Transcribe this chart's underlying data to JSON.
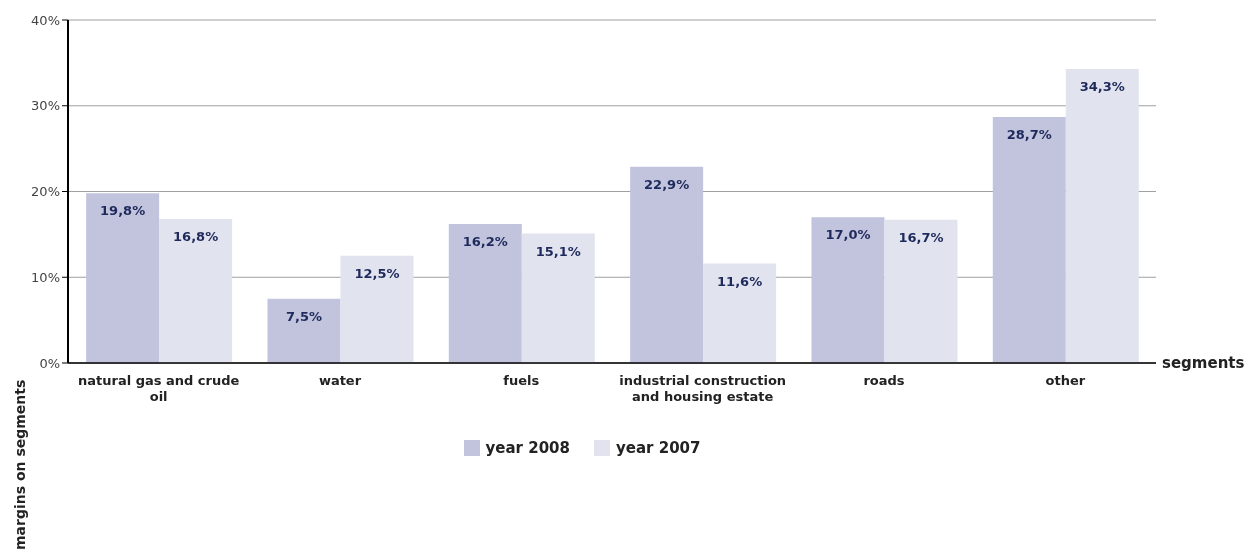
{
  "chart_data": {
    "type": "bar",
    "categories": [
      "natural gas and crude oil",
      "water",
      "fuels",
      "industrial construction and housing estate",
      "roads",
      "other"
    ],
    "series": [
      {
        "name": "year 2008",
        "color": "#c1c4dc",
        "values": [
          19.8,
          7.5,
          16.2,
          22.9,
          17.0,
          28.7
        ],
        "value_labels": [
          "19,8%",
          "7,5%",
          "16,2%",
          "22,9%",
          "17,0%",
          "28,7%"
        ]
      },
      {
        "name": "year 2007",
        "color": "#e1e3ee",
        "values": [
          16.8,
          12.5,
          15.1,
          11.6,
          16.7,
          34.3
        ],
        "value_labels": [
          "16,8%",
          "12,5%",
          "15,1%",
          "11,6%",
          "16,7%",
          "34,3%"
        ]
      }
    ],
    "xlabel": "segments",
    "ylabel": "margins on segments",
    "ylim": [
      0,
      40
    ],
    "yticks": [
      {
        "value": 0,
        "label": "0%"
      },
      {
        "value": 10,
        "label": "10%"
      },
      {
        "value": 20,
        "label": "20%"
      },
      {
        "value": 30,
        "label": "30%"
      },
      {
        "value": 40,
        "label": "40%"
      }
    ],
    "grid": "y",
    "legend": "bottom"
  }
}
